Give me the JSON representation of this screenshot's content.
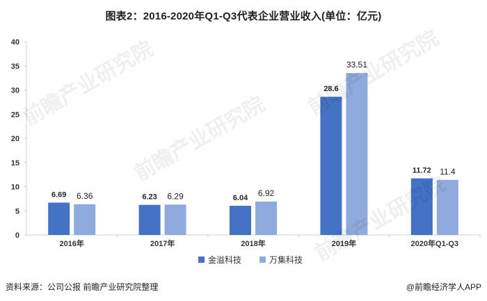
{
  "chart_data": {
    "type": "bar",
    "title": "图表2：2016-2020年Q1-Q3代表企业营业收入(单位：亿元)",
    "categories": [
      "2016年",
      "2017年",
      "2018年",
      "2019年",
      "2020年Q1-Q3"
    ],
    "series": [
      {
        "name": "金溢科技",
        "values": [
          6.69,
          6.23,
          6.04,
          28.6,
          11.72
        ],
        "color": "#4472C4"
      },
      {
        "name": "万集科技",
        "values": [
          6.36,
          6.29,
          6.92,
          33.51,
          11.4
        ],
        "color": "#8FAADC"
      }
    ],
    "value_labels": [
      [
        "6.69",
        "6.23",
        "6.04",
        "28.6",
        "11.72"
      ],
      [
        "6.36",
        "6.29",
        "6.92",
        "33.51",
        "11.4"
      ]
    ],
    "ylim": [
      0,
      40
    ],
    "yticks": [
      0,
      5,
      10,
      15,
      20,
      25,
      30,
      35,
      40
    ],
    "xlabel": "",
    "ylabel": "",
    "grid": false,
    "legend_position": "bottom-center"
  },
  "footer": {
    "source": "资料来源：公司公报 前瞻产业研究院整理",
    "brand": "@前瞻经济学人APP"
  },
  "watermark": "前瞻产业研究院"
}
